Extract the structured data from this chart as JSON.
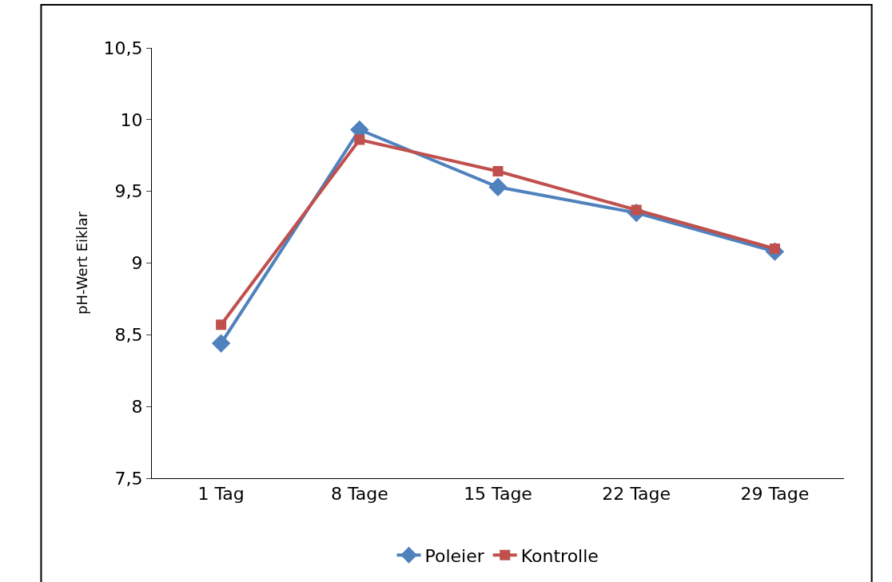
{
  "chart_data": {
    "type": "line",
    "ylabel": "pH-Wert Eiklar",
    "categories": [
      "1 Tag",
      "8 Tage",
      "15 Tage",
      "22 Tage",
      "29 Tage"
    ],
    "series": [
      {
        "name": "Poleier",
        "color": "#4f81bd",
        "marker": "diamond",
        "values": [
          8.44,
          9.93,
          9.53,
          9.35,
          9.08
        ]
      },
      {
        "name": "Kontrolle",
        "color": "#c0504d",
        "marker": "square",
        "values": [
          8.57,
          9.86,
          9.64,
          9.37,
          9.1
        ]
      }
    ],
    "ylim": [
      7.5,
      10.5
    ],
    "yticks": [
      {
        "value": 7.5,
        "label": "7,5"
      },
      8,
      {
        "value": 8.5,
        "label": "8,5"
      },
      9,
      {
        "value": 9.5,
        "label": "9,5"
      },
      10,
      {
        "value": 10.5,
        "label": "10,5"
      }
    ],
    "grid": false,
    "legend": "bottom"
  }
}
